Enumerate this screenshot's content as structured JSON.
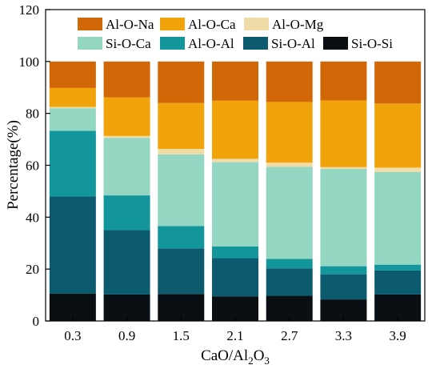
{
  "chart_data": {
    "type": "bar",
    "stacked": true,
    "categories": [
      "0.3",
      "0.9",
      "1.5",
      "2.1",
      "2.7",
      "3.3",
      "3.9"
    ],
    "xlabel": "CaO/Al2O3",
    "xlabel_parts": {
      "a": "CaO/Al",
      "sub1": "2",
      "b": "O",
      "sub2": "3"
    },
    "ylabel": "Percentage(%)",
    "ylim": [
      0,
      120
    ],
    "yticks": [
      0,
      20,
      40,
      60,
      80,
      100,
      120
    ],
    "grid": false,
    "legend_position": "top",
    "series": [
      {
        "name": "Si-O-Si",
        "color": "#0a0f14",
        "values": [
          10.5,
          10.2,
          10.4,
          9.5,
          9.7,
          8.3,
          10.2
        ]
      },
      {
        "name": "Si-O-Al",
        "color": "#0b5a6e",
        "values": [
          37.5,
          24.8,
          17.6,
          14.7,
          10.6,
          9.7,
          9.3
        ]
      },
      {
        "name": "Al-O-Al",
        "color": "#12969b",
        "values": [
          25.3,
          13.4,
          8.6,
          4.5,
          3.6,
          3.1,
          2.2
        ]
      },
      {
        "name": "Si-O-Ca",
        "color": "#93d6c2",
        "values": [
          8.7,
          22.1,
          27.6,
          32.5,
          35.5,
          37.5,
          35.7
        ]
      },
      {
        "name": "Al-O-Mg",
        "color": "#f0dca6",
        "values": [
          0.5,
          0.8,
          2.1,
          1.3,
          1.6,
          0.7,
          1.7
        ]
      },
      {
        "name": "Al-O-Ca",
        "color": "#f0a30a",
        "values": [
          7.3,
          14.9,
          17.7,
          22.4,
          23.4,
          25.7,
          24.7
        ]
      },
      {
        "name": "Al-O-Na",
        "color": "#d16706",
        "values": [
          10.2,
          13.8,
          16.0,
          15.1,
          15.6,
          15.0,
          16.2
        ]
      }
    ],
    "legend": [
      [
        "Al-O-Na",
        "Al-O-Ca",
        "Al-O-Mg"
      ],
      [
        "Si-O-Ca",
        "Al-O-Al",
        "Si-O-Al",
        "Si-O-Si"
      ]
    ]
  }
}
